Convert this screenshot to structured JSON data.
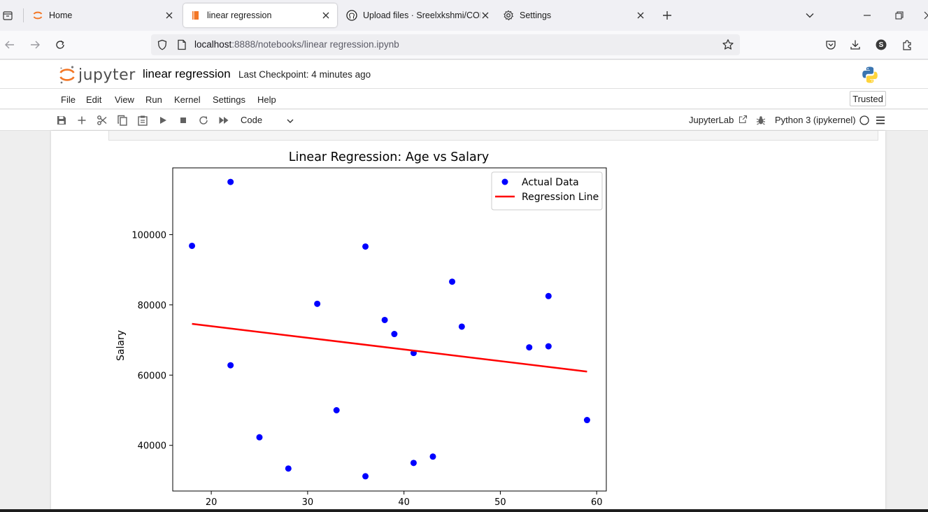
{
  "browser": {
    "tabs": [
      {
        "title": "Home"
      },
      {
        "title": "linear regression"
      },
      {
        "title": "Upload files · Sreelxkshmi/CODT"
      },
      {
        "title": "Settings"
      }
    ],
    "url_host": "localhost",
    "url_rest": ":8888/notebooks/linear regression.ipynb",
    "profile_initial": "S"
  },
  "jupyter": {
    "logo_text": "jupyter",
    "notebook_name": "linear regression",
    "checkpoint": "Last Checkpoint: 4 minutes ago",
    "menu": [
      "File",
      "Edit",
      "View",
      "Run",
      "Kernel",
      "Settings",
      "Help"
    ],
    "trusted": "Trusted",
    "cell_type": "Code",
    "jupyterlab_link": "JupyterLab",
    "kernel": "Python 3 (ipykernel)"
  },
  "colors": {
    "accent_orange": "#f37726",
    "scatter": "#0000ff",
    "regression": "#ff0000"
  },
  "chart_data": {
    "type": "scatter",
    "title": "Linear Regression: Age vs Salary",
    "xlabel": "",
    "ylabel": "Salary",
    "xlim": [
      16,
      61
    ],
    "ylim": [
      27000,
      119000
    ],
    "xticks": [
      20,
      30,
      40,
      50,
      60
    ],
    "yticks": [
      40000,
      60000,
      80000,
      100000
    ],
    "legend_position": "top-right",
    "series": [
      {
        "name": "Actual Data",
        "kind": "scatter",
        "color": "#0000ff",
        "points": [
          [
            18,
            96800
          ],
          [
            22,
            115000
          ],
          [
            22,
            62800
          ],
          [
            25,
            42300
          ],
          [
            28,
            33400
          ],
          [
            31,
            80300
          ],
          [
            33,
            50000
          ],
          [
            36,
            96600
          ],
          [
            36,
            31200
          ],
          [
            38,
            75700
          ],
          [
            39,
            71700
          ],
          [
            41,
            66300
          ],
          [
            41,
            35000
          ],
          [
            43,
            36800
          ],
          [
            45,
            86600
          ],
          [
            46,
            73800
          ],
          [
            53,
            67900
          ],
          [
            55,
            82500
          ],
          [
            55,
            68200
          ],
          [
            59,
            47200
          ]
        ]
      },
      {
        "name": "Regression Line",
        "kind": "line",
        "color": "#ff0000",
        "points": [
          [
            18,
            74600
          ],
          [
            59,
            61000
          ]
        ]
      }
    ]
  }
}
